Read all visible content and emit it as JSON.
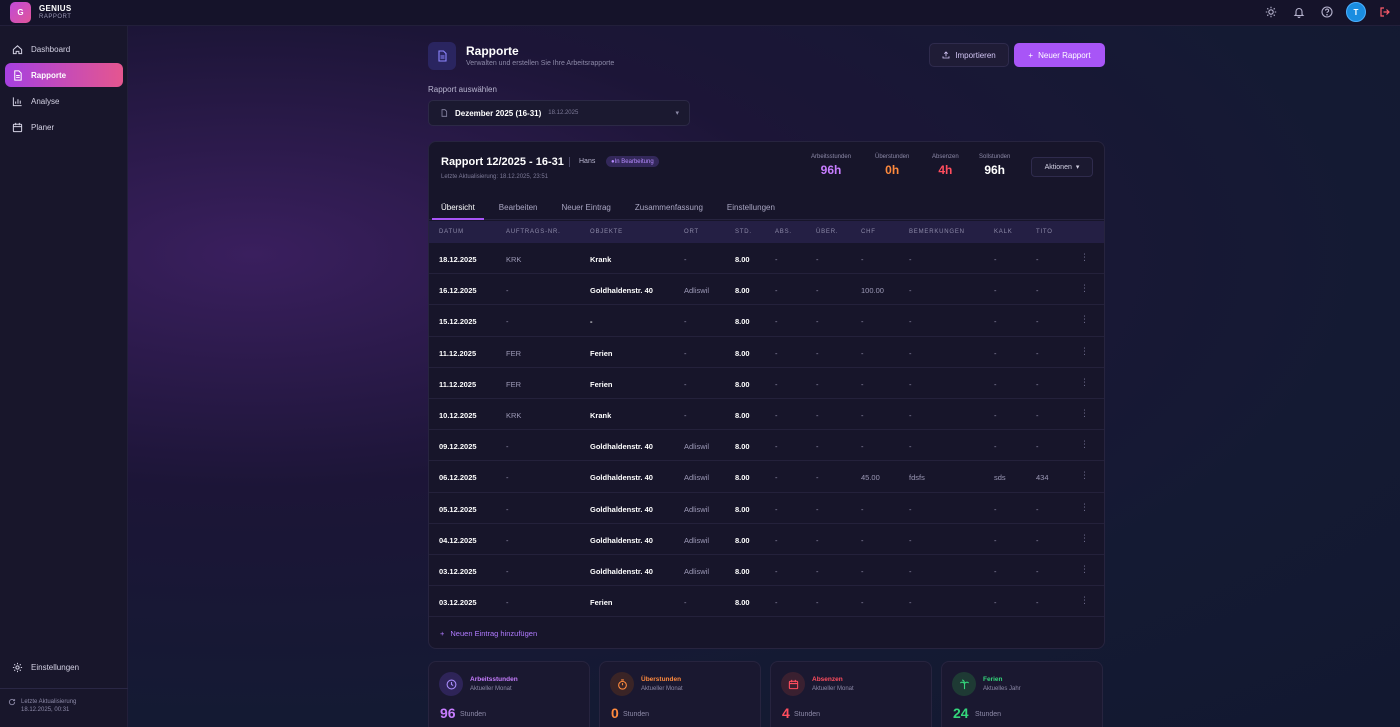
{
  "brand": {
    "logo_letter": "G",
    "name": "GENIUS",
    "sub": "RAPPORT"
  },
  "topbar": {
    "icons": [
      "sun-icon",
      "bell-icon",
      "help-icon"
    ],
    "avatar": "T",
    "logout_icon": "logout-icon"
  },
  "sidebar": {
    "items": [
      {
        "label": "Dashboard",
        "icon": "home-icon",
        "active": false
      },
      {
        "label": "Rapporte",
        "icon": "document-icon",
        "active": true
      },
      {
        "label": "Analyse",
        "icon": "bar-chart-icon",
        "active": false
      },
      {
        "label": "Planer",
        "icon": "calendar-icon",
        "active": false
      }
    ],
    "settings": "Einstellungen",
    "update_label": "Letzte Aktualisierung",
    "update_time": "18.12.2025, 00:31"
  },
  "page": {
    "title": "Rapporte",
    "subtitle": "Verwalten und erstellen Sie Ihre Arbeitsrapporte",
    "import_label": "Importieren",
    "new_label": "Neuer Rapport",
    "select_label": "Rapport auswählen",
    "select_value": "Dezember 2025 (16-31)",
    "select_date": "18.12.2025"
  },
  "report": {
    "title": "Rapport 12/2025 - 16-31",
    "user": "Hans",
    "status": "In Bearbeitung",
    "updated": "Letzte Aktualisierung: 18.12.2025, 23:51",
    "actions_label": "Aktionen",
    "stats": [
      {
        "label": "Arbeitsstunden",
        "value": "96h",
        "color": "#c77dff"
      },
      {
        "label": "Überstunden",
        "value": "0h",
        "color": "#ff8a3d"
      },
      {
        "label": "Absenzen",
        "value": "4h",
        "color": "#ff4d5e"
      },
      {
        "label": "Sollstunden",
        "value": "96h",
        "color": "#ffffff"
      }
    ],
    "tabs": [
      "Übersicht",
      "Bearbeiten",
      "Neuer Eintrag",
      "Zusammenfassung",
      "Einstellungen"
    ],
    "columns": [
      "DATUM",
      "AUFTRAGS-NR.",
      "OBJEKTE",
      "ORT",
      "STD.",
      "ABS.",
      "ÜBER.",
      "CHF",
      "BEMERKUNGEN",
      "KALK",
      "TITO"
    ],
    "rows": [
      [
        "18.12.2025",
        "KRK",
        "Krank",
        "-",
        "8.00",
        "-",
        "-",
        "-",
        "-",
        "-",
        "-"
      ],
      [
        "16.12.2025",
        "-",
        "Goldhaldenstr. 40",
        "Adliswil",
        "8.00",
        "-",
        "-",
        "100.00",
        "-",
        "-",
        "-"
      ],
      [
        "15.12.2025",
        "-",
        "-",
        "-",
        "8.00",
        "-",
        "-",
        "-",
        "-",
        "-",
        "-"
      ],
      [
        "11.12.2025",
        "FER",
        "Ferien",
        "-",
        "8.00",
        "-",
        "-",
        "-",
        "-",
        "-",
        "-"
      ],
      [
        "11.12.2025",
        "FER",
        "Ferien",
        "-",
        "8.00",
        "-",
        "-",
        "-",
        "-",
        "-",
        "-"
      ],
      [
        "10.12.2025",
        "KRK",
        "Krank",
        "-",
        "8.00",
        "-",
        "-",
        "-",
        "-",
        "-",
        "-"
      ],
      [
        "09.12.2025",
        "-",
        "Goldhaldenstr. 40",
        "Adliswil",
        "8.00",
        "-",
        "-",
        "-",
        "-",
        "-",
        "-"
      ],
      [
        "06.12.2025",
        "-",
        "Goldhaldenstr. 40",
        "Adliswil",
        "8.00",
        "-",
        "-",
        "45.00",
        "fdsfs",
        "sds",
        "434"
      ],
      [
        "05.12.2025",
        "-",
        "Goldhaldenstr. 40",
        "Adliswil",
        "8.00",
        "-",
        "-",
        "-",
        "-",
        "-",
        "-"
      ],
      [
        "04.12.2025",
        "-",
        "Goldhaldenstr. 40",
        "Adliswil",
        "8.00",
        "-",
        "-",
        "-",
        "-",
        "-",
        "-"
      ],
      [
        "03.12.2025",
        "-",
        "Goldhaldenstr. 40",
        "Adliswil",
        "8.00",
        "-",
        "-",
        "-",
        "-",
        "-",
        "-"
      ],
      [
        "03.12.2025",
        "-",
        "Ferien",
        "-",
        "8.00",
        "-",
        "-",
        "-",
        "-",
        "-",
        "-"
      ]
    ],
    "add_entry": "Neuen Eintrag hinzufügen"
  },
  "summary": [
    {
      "title": "Arbeitsstunden",
      "sub": "Aktueller Monat",
      "value": "96",
      "unit": "Stunden",
      "color": "#c77dff",
      "icon": "clock-icon"
    },
    {
      "title": "Überstunden",
      "sub": "Aktueller Monat",
      "value": "0",
      "unit": "Stunden",
      "color": "#ff8a3d",
      "icon": "timer-icon"
    },
    {
      "title": "Absenzen",
      "sub": "Aktueller Monat",
      "value": "4",
      "unit": "Stunden",
      "color": "#ff4d5e",
      "icon": "calendar-icon"
    },
    {
      "title": "Ferien",
      "sub": "Aktuelles Jahr",
      "value": "24",
      "unit": "Stunden",
      "color": "#34d67b",
      "icon": "palm-tree-icon"
    }
  ]
}
